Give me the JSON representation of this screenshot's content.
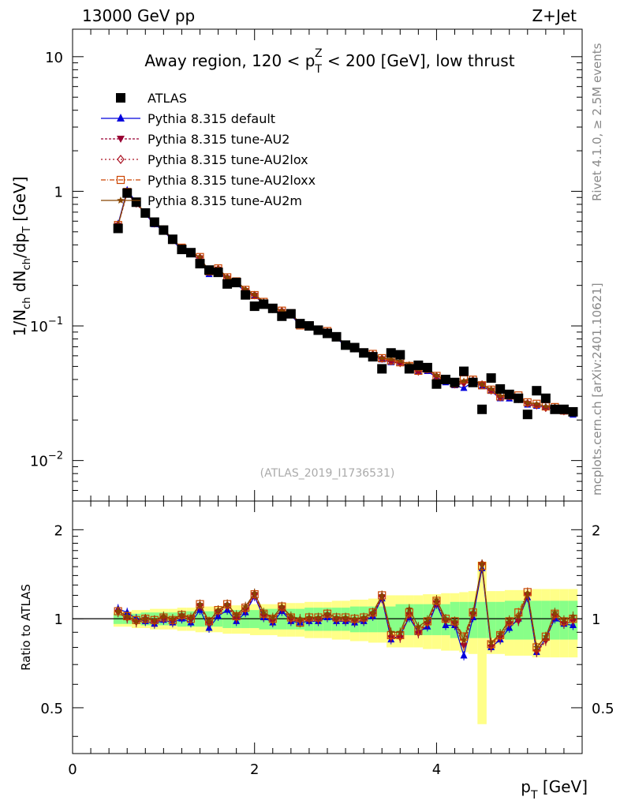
{
  "header": {
    "energy_label": "13000 GeV pp",
    "process_label": "Z+Jet"
  },
  "side": {
    "rivet_label": "Rivet 4.1.0, ≥ 2.5M events",
    "source_label": "mcplots.cern.ch [arXiv:2401.10621]"
  },
  "colors": {
    "atlas": "#000000",
    "default": "#0000dd",
    "au2": "#990033",
    "au2lox": "#aa1122",
    "au2loxx": "#cc4400",
    "au2m": "#884400",
    "band_inner": "#88ff88",
    "band_outer": "#ffff88"
  },
  "chart_data": {
    "type": "scatter",
    "title_parts": {
      "prefix": "Away region, 120 < p",
      "sub": "T",
      "sup": "Z",
      "suffix": " < 200 [GeV], low thrust"
    },
    "analysis_id": "(ATLAS_2019_I1736531)",
    "xlabel": "p",
    "xlabel_sub": "T",
    "xlabel_unit": " [GeV]",
    "ylabel_parts": [
      "1/N",
      "ch",
      " dN",
      "ch",
      "/dp",
      "T",
      " [GeV]"
    ],
    "ratio_ylabel": "Ratio to ATLAS",
    "xlim": [
      0,
      5.6
    ],
    "ylim": [
      0.005,
      16
    ],
    "ratio_ylim": [
      0.35,
      2.5
    ],
    "x_ticks": [
      "0",
      "2",
      "4"
    ],
    "y_ticks": [
      {
        "base": "10",
        "exp": "",
        "label": "10"
      },
      {
        "base": "1",
        "exp": "",
        "label": "1"
      },
      {
        "base": "10",
        "exp": "−1",
        "label": "10⁻¹"
      },
      {
        "base": "10",
        "exp": "−2",
        "label": "10⁻²"
      }
    ],
    "ratio_ticks": [
      "0.5",
      "1",
      "2"
    ],
    "x": [
      0.5,
      0.6,
      0.7,
      0.8,
      0.9,
      1.0,
      1.1,
      1.2,
      1.3,
      1.4,
      1.5,
      1.6,
      1.7,
      1.8,
      1.9,
      2.0,
      2.1,
      2.2,
      2.3,
      2.4,
      2.5,
      2.6,
      2.7,
      2.8,
      2.9,
      3.0,
      3.1,
      3.2,
      3.3,
      3.4,
      3.5,
      3.6,
      3.7,
      3.8,
      3.9,
      4.0,
      4.1,
      4.2,
      4.3,
      4.4,
      4.5,
      4.6,
      4.7,
      4.8,
      4.9,
      5.0,
      5.1,
      5.2,
      5.3,
      5.4,
      5.5
    ],
    "atlas": {
      "name": "ATLAS",
      "values": [
        0.53,
        0.97,
        0.83,
        0.69,
        0.59,
        0.515,
        0.44,
        0.37,
        0.35,
        0.29,
        0.26,
        0.25,
        0.205,
        0.21,
        0.17,
        0.14,
        0.145,
        0.135,
        0.118,
        0.123,
        0.104,
        0.1,
        0.093,
        0.088,
        0.083,
        0.072,
        0.069,
        0.063,
        0.059,
        0.048,
        0.063,
        0.061,
        0.048,
        0.051,
        0.049,
        0.037,
        0.04,
        0.038,
        0.046,
        0.038,
        0.024,
        0.041,
        0.034,
        0.031,
        0.029,
        0.022,
        0.033,
        0.029,
        0.024,
        0.024,
        0.023
      ]
    },
    "band_inner": [
      0.04,
      0.04,
      0.04,
      0.05,
      0.05,
      0.05,
      0.05,
      0.06,
      0.06,
      0.06,
      0.06,
      0.06,
      0.07,
      0.07,
      0.07,
      0.07,
      0.08,
      0.08,
      0.08,
      0.08,
      0.08,
      0.09,
      0.09,
      0.09,
      0.09,
      0.09,
      0.1,
      0.1,
      0.1,
      0.1,
      0.1,
      0.12,
      0.12,
      0.12,
      0.12,
      0.12,
      0.12,
      0.14,
      0.14,
      0.14,
      0.14,
      0.14,
      0.14,
      0.15,
      0.15,
      0.15,
      0.15,
      0.15,
      0.15,
      0.15,
      0.15
    ],
    "band_outer": [
      0.06,
      0.06,
      0.07,
      0.07,
      0.08,
      0.08,
      0.08,
      0.09,
      0.09,
      0.1,
      0.1,
      0.1,
      0.11,
      0.11,
      0.11,
      0.12,
      0.12,
      0.12,
      0.13,
      0.13,
      0.13,
      0.14,
      0.14,
      0.14,
      0.15,
      0.15,
      0.16,
      0.16,
      0.17,
      0.17,
      0.2,
      0.2,
      0.2,
      0.2,
      0.21,
      0.21,
      0.22,
      0.22,
      0.23,
      0.24,
      0.56,
      0.24,
      0.24,
      0.25,
      0.25,
      0.25,
      0.26,
      0.26,
      0.26,
      0.26,
      0.26
    ],
    "series": [
      {
        "name": "Pythia 8.315 default",
        "key": "default",
        "marker": "triangle-up",
        "dash": "",
        "ratio": [
          1.08,
          1.05,
          1.0,
          0.98,
          0.96,
          0.99,
          0.97,
          1.0,
          0.97,
          1.07,
          0.93,
          1.02,
          1.07,
          0.98,
          1.05,
          1.19,
          1.01,
          0.97,
          1.06,
          0.98,
          0.97,
          0.98,
          0.98,
          1.01,
          0.98,
          0.98,
          0.97,
          0.98,
          1.02,
          1.17,
          0.85,
          0.88,
          1.01,
          0.9,
          0.94,
          1.12,
          0.95,
          0.95,
          0.75,
          1.01,
          1.48,
          0.8,
          0.85,
          0.93,
          1.0,
          1.18,
          0.77,
          0.86,
          1.0,
          0.96,
          0.95
        ]
      },
      {
        "name": "Pythia 8.315 tune-AU2",
        "key": "au2",
        "marker": "triangle-down",
        "dash": "3,2",
        "ratio": [
          1.05,
          1.0,
          0.97,
          0.99,
          0.97,
          1.0,
          0.98,
          1.02,
          0.99,
          1.1,
          0.96,
          1.05,
          1.1,
          1.0,
          1.07,
          1.2,
          1.02,
          0.98,
          1.08,
          0.99,
          0.98,
          0.99,
          0.99,
          1.02,
          0.99,
          0.99,
          0.98,
          0.99,
          1.03,
          1.18,
          0.86,
          0.86,
          1.03,
          0.89,
          0.96,
          1.13,
          0.98,
          0.96,
          0.81,
          1.03,
          1.52,
          0.8,
          0.86,
          0.96,
          0.98,
          1.2,
          0.77,
          0.84,
          1.02,
          0.96,
          0.98
        ]
      },
      {
        "name": "Pythia 8.315 tune-AU2lox",
        "key": "au2lox",
        "marker": "diamond-open",
        "dash": "2,3",
        "ratio": [
          1.06,
          1.01,
          0.98,
          1.0,
          0.98,
          1.01,
          0.99,
          1.02,
          1.0,
          1.11,
          0.97,
          1.06,
          1.11,
          1.01,
          1.08,
          1.21,
          1.03,
          0.99,
          1.09,
          1.0,
          0.99,
          1.0,
          1.0,
          1.03,
          1.0,
          1.0,
          0.99,
          1.0,
          1.04,
          1.19,
          0.87,
          0.87,
          1.04,
          0.9,
          0.97,
          1.14,
          0.99,
          0.97,
          0.82,
          1.04,
          1.53,
          0.81,
          0.87,
          0.97,
          0.99,
          1.21,
          0.78,
          0.85,
          1.03,
          0.97,
          0.99
        ]
      },
      {
        "name": "Pythia 8.315 tune-AU2loxx",
        "key": "au2loxx",
        "marker": "square-open",
        "dash": "6,2,1,2",
        "ratio": [
          1.06,
          1.02,
          0.99,
          1.0,
          0.99,
          1.01,
          0.99,
          1.03,
          1.0,
          1.12,
          0.98,
          1.07,
          1.12,
          1.02,
          1.09,
          1.21,
          1.04,
          1.0,
          1.1,
          1.01,
          0.97,
          1.01,
          1.01,
          1.04,
          1.01,
          1.01,
          1.0,
          1.01,
          1.05,
          1.2,
          0.88,
          0.88,
          1.05,
          0.91,
          0.98,
          1.15,
          1.0,
          0.98,
          0.87,
          1.05,
          1.51,
          0.82,
          0.88,
          0.98,
          1.05,
          1.23,
          0.8,
          0.87,
          1.04,
          0.98,
          1.0
        ]
      },
      {
        "name": "Pythia 8.315 tune-AU2m",
        "key": "au2m",
        "marker": "star",
        "dash": "",
        "ratio": [
          1.06,
          1.02,
          0.98,
          1.0,
          0.99,
          1.02,
          1.0,
          1.03,
          1.01,
          1.12,
          0.98,
          1.07,
          1.12,
          1.03,
          1.1,
          1.22,
          1.05,
          1.01,
          1.1,
          1.02,
          1.0,
          1.01,
          1.01,
          1.04,
          1.01,
          1.01,
          1.0,
          1.01,
          1.05,
          1.2,
          0.9,
          0.9,
          1.08,
          0.94,
          0.99,
          1.16,
          1.0,
          0.98,
          0.85,
          1.05,
          1.53,
          0.83,
          0.89,
          0.99,
          1.02,
          1.22,
          0.8,
          0.87,
          1.05,
          0.99,
          1.02
        ]
      }
    ]
  }
}
